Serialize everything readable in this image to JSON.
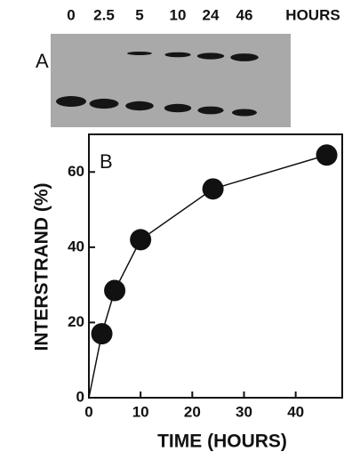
{
  "gel": {
    "label": "A",
    "lanes": [
      "0",
      "2.5",
      "5",
      "10",
      "24",
      "46"
    ],
    "unit": "HOURS"
  },
  "chart_data": {
    "type": "line",
    "label": "B",
    "xlabel": "TIME (HOURS)",
    "ylabel": "INTERSTRAND (%)",
    "x": [
      0,
      2.5,
      5,
      10,
      24,
      46
    ],
    "values": [
      0,
      17,
      28.5,
      42,
      55.5,
      64.5
    ],
    "markers": [
      false,
      true,
      true,
      true,
      true,
      true
    ],
    "color": "#111111",
    "xlim": [
      0,
      49
    ],
    "ylim": [
      0,
      70
    ],
    "xticks": [
      0,
      10,
      20,
      30,
      40
    ],
    "yticks": [
      0,
      20,
      40,
      60
    ]
  }
}
